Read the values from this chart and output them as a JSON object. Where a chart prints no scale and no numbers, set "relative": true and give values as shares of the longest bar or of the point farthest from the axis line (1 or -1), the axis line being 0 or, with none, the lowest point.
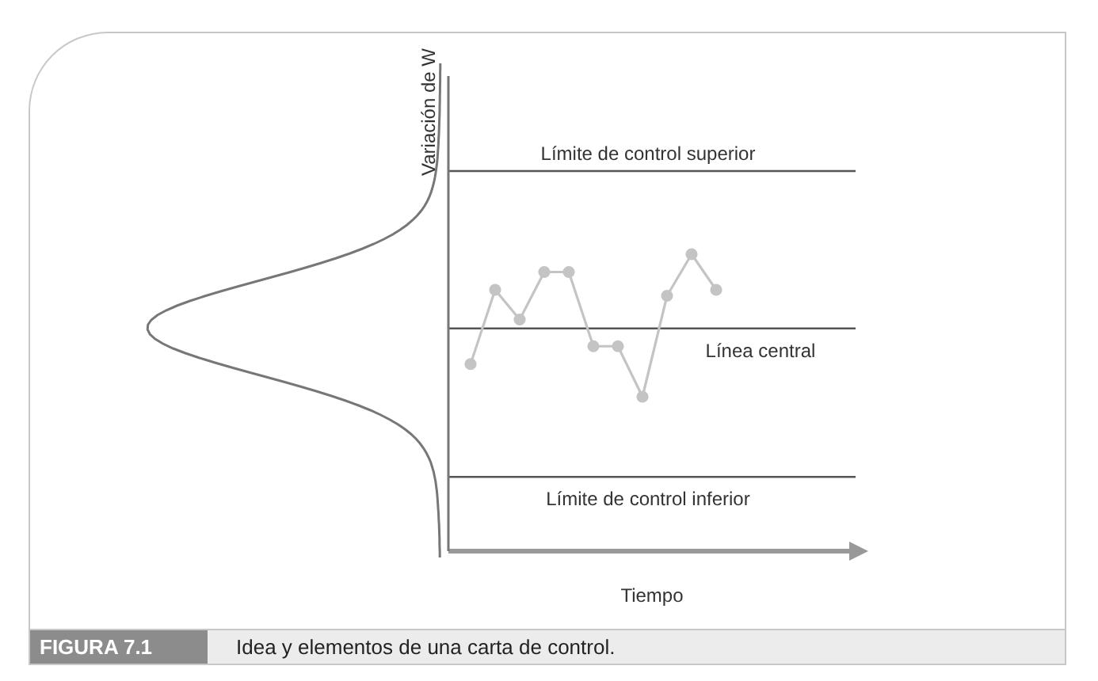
{
  "chart_data": {
    "type": "line",
    "relative": true,
    "ylabel": "Variación de W",
    "xlabel": "Tiempo",
    "categories": [
      null,
      null,
      null,
      null,
      null,
      null,
      null,
      null,
      null,
      null,
      null
    ],
    "series": [
      {
        "color": "#c4c4c4",
        "values": [
          0.63,
          0.88,
          0.78,
          0.94,
          0.94,
          0.69,
          0.69,
          0.52,
          0.86,
          1,
          0.88
        ]
      }
    ],
    "marker": "circle",
    "line_style": "solid",
    "grid": false,
    "legend": false,
    "ref_lines": [
      {
        "axis": "y",
        "value": 1.28,
        "label": "Límite de control superior",
        "color": "#555555"
      },
      {
        "axis": "y",
        "value": 0.75,
        "label": "Línea central",
        "color": "#555555"
      },
      {
        "axis": "y",
        "value": 0.25,
        "label": "Límite de control inferior",
        "color": "#555555"
      }
    ],
    "annotations": [
      "FIGURA 7.1",
      "Idea y elementos de una carta de control."
    ]
  }
}
